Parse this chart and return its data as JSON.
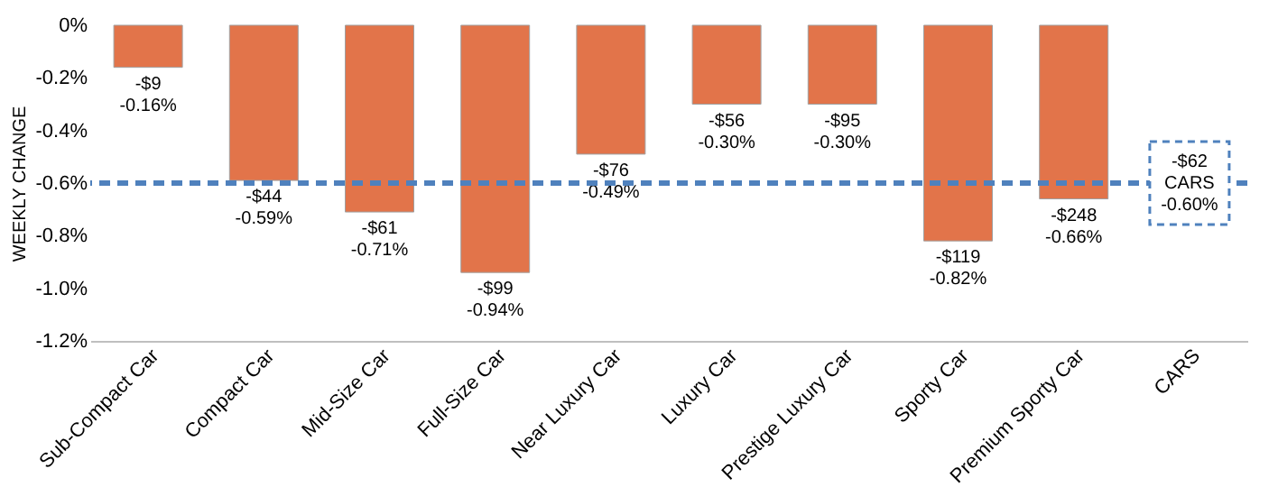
{
  "chart_data": {
    "type": "bar",
    "ylabel": "WEEKLY CHANGE",
    "categories": [
      "Sub-Compact Car",
      "Compact Car",
      "Mid-Size Car",
      "Full-Size Car",
      "Near Luxury Car",
      "Luxury Car",
      "Prestige Luxury Car",
      "Sporty Car",
      "Premium Sporty Car",
      "CARS"
    ],
    "values": [
      -0.16,
      -0.59,
      -0.71,
      -0.94,
      -0.49,
      -0.3,
      -0.3,
      -0.82,
      -0.66,
      null
    ],
    "value_labels": [
      "-$9\n-0.16%",
      "-$44\n-0.59%",
      "-$61\n-0.71%",
      "-$99\n-0.94%",
      "-$76\n-0.49%",
      "-$56\n-0.30%",
      "-$95\n-0.30%",
      "-$119\n-0.82%",
      "-$248\n-0.66%",
      null
    ],
    "color": "#e2744a",
    "ylim": [
      -1.2,
      0
    ],
    "yticks": [
      {
        "value": 0,
        "label": "0%"
      },
      {
        "value": -0.2,
        "label": "-0.2%"
      },
      {
        "value": -0.4,
        "label": "-0.4%"
      },
      {
        "value": -0.6,
        "label": "-0.6%"
      },
      {
        "value": -0.8,
        "label": "-0.8%"
      },
      {
        "value": -1.0,
        "label": "-1.0%"
      },
      {
        "value": -1.2,
        "label": "-1.2%"
      }
    ],
    "ref_lines": [
      {
        "axis": "y",
        "value": -0.6,
        "label": "-$62\nCARS\n-0.60%",
        "color": "#4f81bd",
        "line_style": "dashed"
      }
    ],
    "grid": false
  }
}
